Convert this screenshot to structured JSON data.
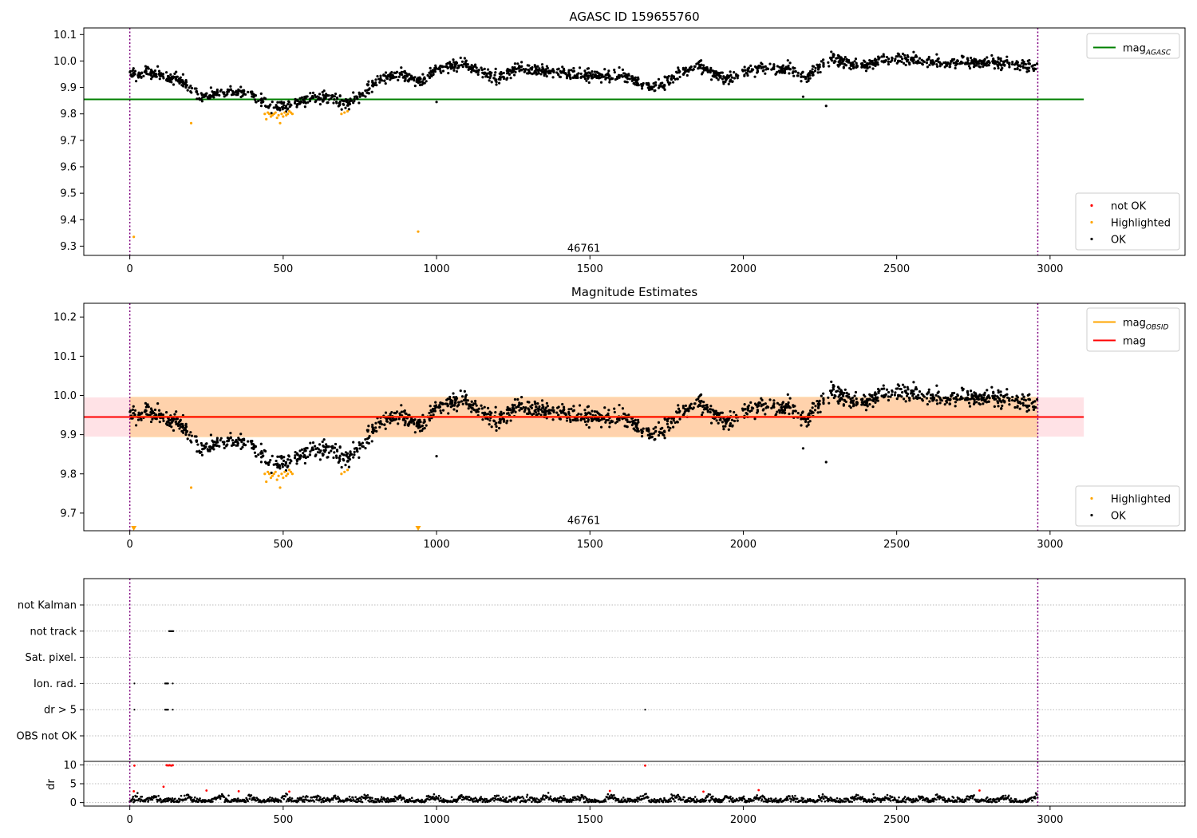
{
  "chart_data": [
    {
      "type": "scatter",
      "title": "AGASC ID 159655760",
      "xlabel": "",
      "ylabel": "",
      "xlim": [
        -150,
        3440
      ],
      "ylim": [
        9.265,
        10.125
      ],
      "xticks": [
        0,
        500,
        1000,
        1500,
        2000,
        2500,
        3000
      ],
      "yticks": [
        9.3,
        9.4,
        9.5,
        9.6,
        9.7,
        9.8,
        9.9,
        10.0,
        10.1
      ],
      "ytick_labels": [
        "9.3",
        "9.4",
        "9.5",
        "9.6",
        "9.7",
        "9.8",
        "9.9",
        "10.0",
        "10.1"
      ],
      "annotation": {
        "text": "46761",
        "x": 1480,
        "y": 9.29
      },
      "vlines": [
        0,
        2960
      ],
      "hlines": [
        {
          "name": "mag",
          "subscript": "AGASC",
          "y": 9.855,
          "x_range": [
            -150,
            3110
          ],
          "color": "#008000"
        }
      ],
      "legend_lines": [
        {
          "label": "mag",
          "subscript": "AGASC",
          "color": "#008000"
        }
      ],
      "legend_points": [
        {
          "label": "not OK",
          "color": "#ff0000"
        },
        {
          "label": "Highlighted",
          "color": "#ffa500"
        },
        {
          "label": "OK",
          "color": "#000000"
        }
      ],
      "ok_trend": [
        [
          0,
          9.95
        ],
        [
          60,
          9.955
        ],
        [
          120,
          9.94
        ],
        [
          180,
          9.92
        ],
        [
          230,
          9.86
        ],
        [
          300,
          9.885
        ],
        [
          370,
          9.885
        ],
        [
          420,
          9.86
        ],
        [
          460,
          9.82
        ],
        [
          520,
          9.83
        ],
        [
          580,
          9.86
        ],
        [
          640,
          9.87
        ],
        [
          700,
          9.84
        ],
        [
          750,
          9.86
        ],
        [
          800,
          9.92
        ],
        [
          880,
          9.95
        ],
        [
          950,
          9.92
        ],
        [
          1000,
          9.97
        ],
        [
          1100,
          9.985
        ],
        [
          1200,
          9.93
        ],
        [
          1260,
          9.975
        ],
        [
          1400,
          9.955
        ],
        [
          1500,
          9.945
        ],
        [
          1600,
          9.945
        ],
        [
          1700,
          9.9
        ],
        [
          1750,
          9.92
        ],
        [
          1850,
          9.985
        ],
        [
          1950,
          9.93
        ],
        [
          2050,
          9.975
        ],
        [
          2150,
          9.97
        ],
        [
          2200,
          9.94
        ],
        [
          2280,
          10.01
        ],
        [
          2380,
          9.98
        ],
        [
          2500,
          10.01
        ],
        [
          2600,
          9.995
        ],
        [
          2700,
          9.99
        ],
        [
          2800,
          9.995
        ],
        [
          2960,
          9.975
        ]
      ],
      "ok_n": 1750,
      "ok_scatter": 0.018,
      "ok_outliers": [
        [
          2195,
          9.865
        ],
        [
          2270,
          9.83
        ],
        [
          1000,
          9.845
        ]
      ],
      "highlighted": [
        [
          13,
          9.335
        ],
        [
          200,
          9.765
        ],
        [
          940,
          9.355
        ],
        [
          690,
          9.8
        ],
        [
          700,
          9.805
        ],
        [
          710,
          9.81
        ],
        [
          440,
          9.8
        ],
        [
          445,
          9.78
        ],
        [
          450,
          9.805
        ],
        [
          455,
          9.8
        ],
        [
          460,
          9.79
        ],
        [
          465,
          9.795
        ],
        [
          470,
          9.8
        ],
        [
          475,
          9.805
        ],
        [
          480,
          9.785
        ],
        [
          485,
          9.795
        ],
        [
          490,
          9.765
        ],
        [
          495,
          9.8
        ],
        [
          500,
          9.79
        ],
        [
          505,
          9.805
        ],
        [
          510,
          9.795
        ],
        [
          515,
          9.8
        ],
        [
          520,
          9.81
        ],
        [
          525,
          9.805
        ],
        [
          530,
          9.8
        ]
      ]
    },
    {
      "type": "scatter",
      "title": "Magnitude Estimates",
      "xlabel": "",
      "ylabel": "",
      "xlim": [
        -150,
        3440
      ],
      "ylim": [
        9.655,
        10.235
      ],
      "xticks": [
        0,
        500,
        1000,
        1500,
        2000,
        2500,
        3000
      ],
      "yticks": [
        9.7,
        9.8,
        9.9,
        10.0,
        10.1,
        10.2
      ],
      "ytick_labels": [
        "9.7",
        "9.8",
        "9.9",
        "10.0",
        "10.1",
        "10.2"
      ],
      "annotation": {
        "text": "46761",
        "x": 1480,
        "y": 9.68
      },
      "vlines": [
        0,
        2960
      ],
      "bands": [
        {
          "x_range": [
            -150,
            3110
          ],
          "y_range": [
            9.895,
            9.995
          ],
          "color": "#ffb6c1"
        },
        {
          "x_range": [
            0,
            2960
          ],
          "y_range": [
            9.893,
            9.997
          ],
          "color": "#ffa500"
        }
      ],
      "hlines": [
        {
          "name": "mag",
          "subscript": "OBSID",
          "y": 9.946,
          "x_range": [
            0,
            2960
          ],
          "color": "#ffa500"
        },
        {
          "name": "mag",
          "y": 9.945,
          "x_range": [
            -150,
            3110
          ],
          "color": "#ff0000"
        }
      ],
      "legend_lines": [
        {
          "label": "mag",
          "subscript": "OBSID",
          "color": "#ffa500"
        },
        {
          "label": "mag",
          "color": "#ff0000"
        }
      ],
      "legend_points": [
        {
          "label": "Highlighted",
          "color": "#ffa500"
        },
        {
          "label": "OK",
          "color": "#000000"
        }
      ],
      "highlight_markers": [
        [
          13,
          9.655
        ],
        [
          940,
          9.655
        ]
      ]
    },
    {
      "type": "scatter",
      "title": "",
      "xlabel": "",
      "ylabel": "dr",
      "xlim": [
        -150,
        3440
      ],
      "flags": {
        "categories": [
          "not Kalman",
          "not track",
          "Sat. pixel.",
          "Ion. rad.",
          "dr > 5",
          "OBS not OK"
        ],
        "points": {
          "not track": [
            [
              128,
              142
            ]
          ],
          "Ion. rad.": [
            [
              15
            ],
            [
              115,
              125
            ],
            [
              140
            ]
          ],
          "dr > 5": [
            [
              15
            ],
            [
              115,
              125
            ],
            [
              140
            ],
            [
              1680
            ]
          ]
        }
      },
      "dr": {
        "ylim": [
          -0.5,
          10.5
        ],
        "yticks": [
          0,
          5,
          10
        ],
        "ytick_labels": [
          "0",
          "5",
          "10"
        ],
        "ok_range": [
          0,
          2.6
        ],
        "not_ok_points": [
          [
            15,
            9.8
          ],
          [
            120,
            9.9
          ],
          [
            125,
            9.85
          ],
          [
            130,
            9.9
          ],
          [
            135,
            9.8
          ],
          [
            140,
            9.9
          ],
          [
            1680,
            9.8
          ],
          [
            13,
            3.0
          ],
          [
            110,
            4.2
          ],
          [
            250,
            3.2
          ],
          [
            355,
            3.0
          ],
          [
            520,
            2.9
          ],
          [
            1565,
            3.1
          ],
          [
            1870,
            2.9
          ],
          [
            2050,
            3.3
          ],
          [
            2770,
            3.2
          ]
        ]
      },
      "xticks": [
        0,
        500,
        1000,
        1500,
        2000,
        2500,
        3000
      ],
      "vlines": [
        0,
        2960
      ]
    }
  ]
}
